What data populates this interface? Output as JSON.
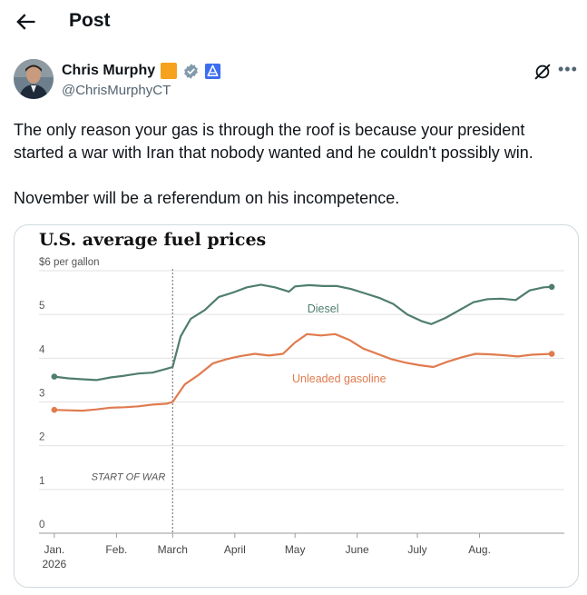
{
  "header": {
    "title": "Post",
    "back_icon": "arrow-left-icon"
  },
  "author": {
    "name": "Chris Murphy",
    "handle": "@ChrisMurphyCT",
    "badges": [
      "orange-square-badge",
      "verified-gov-badge",
      "affiliate-badge"
    ],
    "badge_colors": {
      "orange": "#f6a21d",
      "gray": "#829aab",
      "blue": "#3c6df0"
    }
  },
  "actions": {
    "grok_icon": "grok-icon",
    "more_icon": "more-icon"
  },
  "tweet": {
    "paragraph1": "The only reason your gas is through the roof is because your president started a war with Iran that nobody wanted and he couldn't possibly win.",
    "paragraph2": "November will be a referendum on his incompetence."
  },
  "chart_data": {
    "type": "line",
    "title": "U.S. average fuel prices",
    "y_unit_label": "$6 per gallon",
    "ylim": [
      0,
      6
    ],
    "y_ticks": [
      0,
      1,
      2,
      3,
      4,
      5
    ],
    "x_tick_labels": [
      "Jan.",
      "Feb.",
      "March",
      "April",
      "May",
      "June",
      "July",
      "Aug."
    ],
    "x_tick_sublabel": "2026",
    "annotation": "START OF WAR",
    "grid": true,
    "series": [
      {
        "name": "Diesel",
        "color": "#4f7d6e",
        "points": [
          [
            "2026-01-01",
            3.58
          ],
          [
            "2026-01-08",
            3.54
          ],
          [
            "2026-01-15",
            3.52
          ],
          [
            "2026-01-22",
            3.5
          ],
          [
            "2026-01-29",
            3.56
          ],
          [
            "2026-02-05",
            3.6
          ],
          [
            "2026-02-12",
            3.65
          ],
          [
            "2026-02-19",
            3.67
          ],
          [
            "2026-02-26",
            3.76
          ],
          [
            "2026-03-01",
            3.8
          ],
          [
            "2026-03-05",
            4.5
          ],
          [
            "2026-03-10",
            4.9
          ],
          [
            "2026-03-17",
            5.1
          ],
          [
            "2026-03-24",
            5.4
          ],
          [
            "2026-03-31",
            5.5
          ],
          [
            "2026-04-07",
            5.62
          ],
          [
            "2026-04-14",
            5.68
          ],
          [
            "2026-04-21",
            5.62
          ],
          [
            "2026-04-28",
            5.52
          ],
          [
            "2026-05-01",
            5.64
          ],
          [
            "2026-05-08",
            5.67
          ],
          [
            "2026-05-15",
            5.65
          ],
          [
            "2026-05-22",
            5.65
          ],
          [
            "2026-05-29",
            5.58
          ],
          [
            "2026-06-05",
            5.48
          ],
          [
            "2026-06-12",
            5.38
          ],
          [
            "2026-06-19",
            5.24
          ],
          [
            "2026-06-26",
            5.0
          ],
          [
            "2026-07-03",
            4.85
          ],
          [
            "2026-07-08",
            4.78
          ],
          [
            "2026-07-15",
            4.92
          ],
          [
            "2026-07-22",
            5.1
          ],
          [
            "2026-07-29",
            5.28
          ],
          [
            "2026-08-05",
            5.35
          ],
          [
            "2026-08-12",
            5.36
          ],
          [
            "2026-08-19",
            5.33
          ],
          [
            "2026-08-26",
            5.55
          ],
          [
            "2026-09-02",
            5.62
          ],
          [
            "2026-09-06",
            5.63
          ]
        ]
      },
      {
        "name": "Unleaded gasoline",
        "color": "#e07b4f",
        "points": [
          [
            "2026-01-01",
            2.82
          ],
          [
            "2026-01-08",
            2.81
          ],
          [
            "2026-01-15",
            2.8
          ],
          [
            "2026-01-22",
            2.83
          ],
          [
            "2026-01-29",
            2.87
          ],
          [
            "2026-02-05",
            2.88
          ],
          [
            "2026-02-12",
            2.9
          ],
          [
            "2026-02-19",
            2.94
          ],
          [
            "2026-02-26",
            2.96
          ],
          [
            "2026-03-01",
            3.0
          ],
          [
            "2026-03-07",
            3.4
          ],
          [
            "2026-03-14",
            3.62
          ],
          [
            "2026-03-21",
            3.88
          ],
          [
            "2026-03-28",
            3.98
          ],
          [
            "2026-04-04",
            4.05
          ],
          [
            "2026-04-11",
            4.1
          ],
          [
            "2026-04-18",
            4.06
          ],
          [
            "2026-04-25",
            4.1
          ],
          [
            "2026-05-01",
            4.36
          ],
          [
            "2026-05-07",
            4.55
          ],
          [
            "2026-05-14",
            4.52
          ],
          [
            "2026-05-21",
            4.55
          ],
          [
            "2026-05-28",
            4.42
          ],
          [
            "2026-06-04",
            4.22
          ],
          [
            "2026-06-11",
            4.1
          ],
          [
            "2026-06-18",
            3.98
          ],
          [
            "2026-06-25",
            3.9
          ],
          [
            "2026-07-02",
            3.84
          ],
          [
            "2026-07-09",
            3.8
          ],
          [
            "2026-07-16",
            3.92
          ],
          [
            "2026-07-23",
            4.02
          ],
          [
            "2026-07-30",
            4.1
          ],
          [
            "2026-08-06",
            4.09
          ],
          [
            "2026-08-13",
            4.07
          ],
          [
            "2026-08-20",
            4.04
          ],
          [
            "2026-08-27",
            4.08
          ],
          [
            "2026-09-06",
            4.1
          ]
        ]
      }
    ],
    "series_labels": {
      "Diesel": {
        "date": "2026-05-15",
        "y": 5.05
      },
      "Unleaded gasoline": {
        "date": "2026-05-23",
        "y": 3.45
      }
    },
    "war_start_date": "2026-03-01",
    "x_range": [
      "2025-12-28",
      "2026-09-10"
    ],
    "x_tick_dates": [
      "2026-01-01",
      "2026-02-01",
      "2026-03-01",
      "2026-04-01",
      "2026-05-01",
      "2026-06-01",
      "2026-07-01",
      "2026-08-01"
    ]
  }
}
